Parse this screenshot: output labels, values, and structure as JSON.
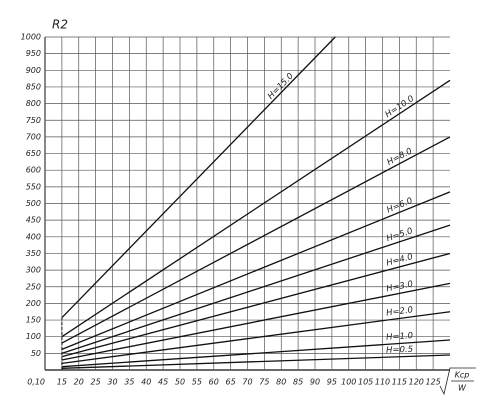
{
  "chart_data": {
    "type": "line",
    "y_label": "R2",
    "x_label_numerator": "Kcp",
    "x_label_denominator": "W",
    "xlim": [
      0.1,
      1.3
    ],
    "ylim": [
      0,
      1000
    ],
    "xticks": [
      {
        "value": 0.1,
        "label": "0,10"
      },
      {
        "value": 0.15,
        "label": "15"
      },
      {
        "value": 0.2,
        "label": "20"
      },
      {
        "value": 0.25,
        "label": "25"
      },
      {
        "value": 0.3,
        "label": "30"
      },
      {
        "value": 0.35,
        "label": "35"
      },
      {
        "value": 0.4,
        "label": "40"
      },
      {
        "value": 0.45,
        "label": "45"
      },
      {
        "value": 0.5,
        "label": "50"
      },
      {
        "value": 0.55,
        "label": "55"
      },
      {
        "value": 0.6,
        "label": "60"
      },
      {
        "value": 0.65,
        "label": "65"
      },
      {
        "value": 0.7,
        "label": "70"
      },
      {
        "value": 0.75,
        "label": "75"
      },
      {
        "value": 0.8,
        "label": "80"
      },
      {
        "value": 0.85,
        "label": "85"
      },
      {
        "value": 0.9,
        "label": "90"
      },
      {
        "value": 0.95,
        "label": "95"
      },
      {
        "value": 1.0,
        "label": "100"
      },
      {
        "value": 1.05,
        "label": "105"
      },
      {
        "value": 1.1,
        "label": "110"
      },
      {
        "value": 1.15,
        "label": "115"
      },
      {
        "value": 1.2,
        "label": "120"
      },
      {
        "value": 1.25,
        "label": "125"
      }
    ],
    "yticks": [
      50,
      100,
      150,
      200,
      250,
      300,
      350,
      400,
      450,
      500,
      550,
      600,
      650,
      700,
      750,
      800,
      850,
      900,
      950,
      1000
    ],
    "grid": true,
    "series": [
      {
        "name": "H=15.0",
        "color": "#111111",
        "x": [
          0.15,
          0.96
        ],
        "values": [
          157,
          1000
        ]
      },
      {
        "name": "H=10.0",
        "color": "#111111",
        "x": [
          0.15,
          1.3
        ],
        "values": [
          100,
          870
        ]
      },
      {
        "name": "H=8.0",
        "color": "#111111",
        "x": [
          0.15,
          1.3
        ],
        "values": [
          81,
          700
        ]
      },
      {
        "name": "H=6.0",
        "color": "#111111",
        "x": [
          0.15,
          1.3
        ],
        "values": [
          62,
          535
        ]
      },
      {
        "name": "H=5.0",
        "color": "#111111",
        "x": [
          0.15,
          1.3
        ],
        "values": [
          50,
          435
        ]
      },
      {
        "name": "H=4.0",
        "color": "#111111",
        "x": [
          0.15,
          1.3
        ],
        "values": [
          40,
          350
        ]
      },
      {
        "name": "H=3.0",
        "color": "#111111",
        "x": [
          0.15,
          1.3
        ],
        "values": [
          30,
          260
        ]
      },
      {
        "name": "H=2.0",
        "color": "#111111",
        "x": [
          0.15,
          1.3
        ],
        "values": [
          20,
          175
        ]
      },
      {
        "name": "H=1.0",
        "color": "#111111",
        "x": [
          0.15,
          1.3
        ],
        "values": [
          10,
          90
        ]
      },
      {
        "name": "H=0.5",
        "color": "#111111",
        "x": [
          0.15,
          1.3
        ],
        "values": [
          5,
          45
        ]
      }
    ]
  }
}
